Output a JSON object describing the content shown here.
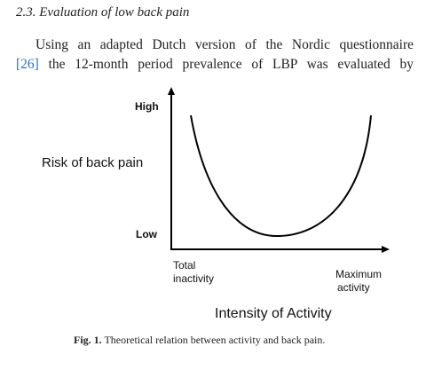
{
  "section": {
    "heading": "2.3. Evaluation of low back pain"
  },
  "paragraph": {
    "line1": "Using an adapted Dutch version of the Nordic questionnaire",
    "ref": "[26]",
    "line2": "the 12-month period prevalence of LBP was evaluated by"
  },
  "figure": {
    "y_high": "High",
    "y_low": "Low",
    "y_title": "Risk of back pain",
    "x_left": [
      "Total",
      "inactivity"
    ],
    "x_right": [
      "Maximum",
      "activity"
    ],
    "x_title": "Intensity of Activity"
  },
  "caption": {
    "label": "Fig. 1.",
    "text": "Theoretical relation between activity and back pain."
  }
}
